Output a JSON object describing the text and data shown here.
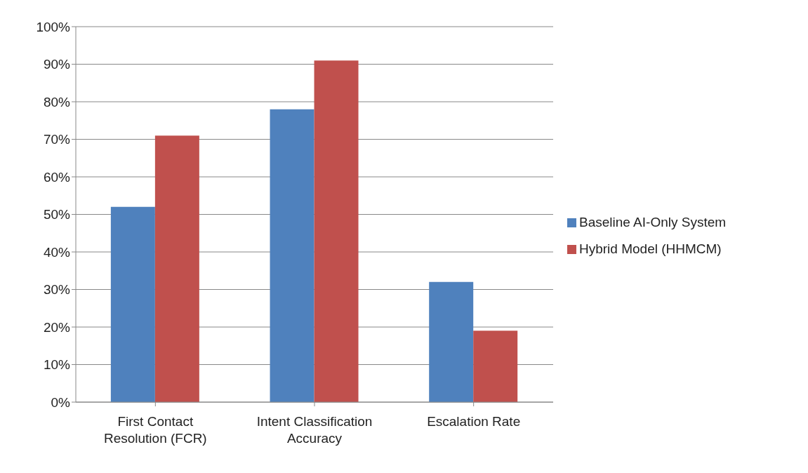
{
  "chart_data": {
    "type": "bar",
    "categories": [
      "First Contact Resolution (FCR)",
      "Intent Classification Accuracy",
      "Escalation Rate"
    ],
    "series": [
      {
        "name": "Baseline AI-Only System",
        "color": "#4f81bd",
        "values": [
          52,
          78,
          32
        ]
      },
      {
        "name": "Hybrid Model (HHMCM)",
        "color": "#c0504d",
        "values": [
          71,
          91,
          19
        ]
      }
    ],
    "ylim": [
      0,
      100
    ],
    "yticks": [
      {
        "value": 0,
        "label": "0%"
      },
      {
        "value": 10,
        "label": "10%"
      },
      {
        "value": 20,
        "label": "20%"
      },
      {
        "value": 30,
        "label": "30%"
      },
      {
        "value": 40,
        "label": "40%"
      },
      {
        "value": 50,
        "label": "50%"
      },
      {
        "value": 60,
        "label": "60%"
      },
      {
        "value": 70,
        "label": "70%"
      },
      {
        "value": 80,
        "label": "80%"
      },
      {
        "value": 90,
        "label": "90%"
      },
      {
        "value": 100,
        "label": "100%"
      }
    ],
    "grid": "y",
    "legend": "right"
  }
}
